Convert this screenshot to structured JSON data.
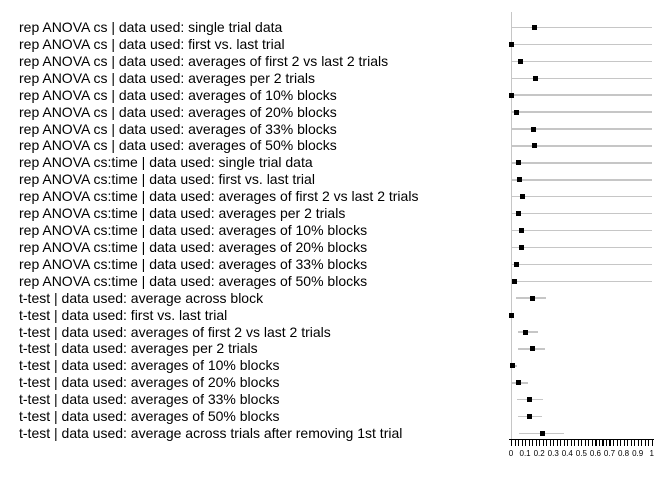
{
  "chart_data": {
    "type": "scatter",
    "subtype": "forest_plot_with_error_bars",
    "title": "",
    "xlabel": "",
    "ylabel": "",
    "xlim": [
      0,
      1
    ],
    "x_tick_values": [
      0,
      0.1,
      0.2,
      0.3,
      0.4,
      0.5,
      0.6,
      0.7,
      0.8,
      0.9,
      1
    ],
    "x_tick_labels": [
      "0",
      "0.1",
      "0.2",
      "0.3",
      "0.4",
      "0.5",
      "0.6",
      "0.7",
      "0.8",
      "0.9",
      "1"
    ],
    "minor_tick_step": 0.025,
    "grid": "off",
    "legend_position": "none",
    "marker_shape": "square",
    "colors": {
      "marker": "#000000",
      "error_bar": "#c6c6c6",
      "y_axis_line": "#c6c6c6",
      "axis": "#000000",
      "text": "#000000",
      "background": "#ffffff"
    },
    "rows": [
      {
        "label": "rep ANOVA cs | data used: single trial data",
        "value": 0.17,
        "ci_low": 0.0,
        "ci_high": 1.0
      },
      {
        "label": "rep ANOVA cs | data used: first vs. last trial",
        "value": 0.003,
        "ci_low": 0.0,
        "ci_high": 1.0
      },
      {
        "label": "rep ANOVA cs | data used: averages of first 2 vs last 2 trials",
        "value": 0.069,
        "ci_low": 0.0,
        "ci_high": 1.0
      },
      {
        "label": "rep ANOVA cs | data used: averages per 2 trials",
        "value": 0.172,
        "ci_low": 0.0,
        "ci_high": 1.0
      },
      {
        "label": "rep ANOVA cs | data used: averages of 10% blocks",
        "value": 0.007,
        "ci_low": 0.0,
        "ci_high": 1.0
      },
      {
        "label": "rep ANOVA cs | data used: averages of 20% blocks",
        "value": 0.04,
        "ci_low": 0.0,
        "ci_high": 1.0
      },
      {
        "label": "rep ANOVA cs | data used: averages of 33% blocks",
        "value": 0.16,
        "ci_low": 0.0,
        "ci_high": 1.0
      },
      {
        "label": "rep ANOVA cs | data used: averages of 50% blocks",
        "value": 0.17,
        "ci_low": 0.0,
        "ci_high": 1.0
      },
      {
        "label": "rep ANOVA cs:time | data used: single trial data",
        "value": 0.055,
        "ci_low": 0.0,
        "ci_high": 1.0
      },
      {
        "label": "rep ANOVA cs:time | data used: first vs. last trial",
        "value": 0.057,
        "ci_low": 0.0,
        "ci_high": 1.0
      },
      {
        "label": "rep ANOVA cs:time | data used: averages of first 2 vs last 2 trials",
        "value": 0.083,
        "ci_low": 0.0,
        "ci_high": 1.0
      },
      {
        "label": "rep ANOVA cs:time | data used: averages per 2 trials",
        "value": 0.052,
        "ci_low": 0.0,
        "ci_high": 1.0
      },
      {
        "label": "rep ANOVA cs:time | data used: averages of 10% blocks",
        "value": 0.073,
        "ci_low": 0.0,
        "ci_high": 1.0
      },
      {
        "label": "rep ANOVA cs:time | data used: averages of 20% blocks",
        "value": 0.078,
        "ci_low": 0.0,
        "ci_high": 1.0
      },
      {
        "label": "rep ANOVA cs:time | data used: averages of 33% blocks",
        "value": 0.04,
        "ci_low": 0.0,
        "ci_high": 1.0
      },
      {
        "label": "rep ANOVA cs:time | data used: averages of 50% blocks",
        "value": 0.023,
        "ci_low": 0.0,
        "ci_high": 1.0
      },
      {
        "label": "t-test | data used: average across block",
        "value": 0.15,
        "ci_low": 0.035,
        "ci_high": 0.25
      },
      {
        "label": "t-test | data used: first vs. last trial",
        "value": 0.003,
        "ci_low": 0.0,
        "ci_high": 0.02
      },
      {
        "label": "t-test | data used: averages of first 2 vs last 2 trials",
        "value": 0.102,
        "ci_low": 0.05,
        "ci_high": 0.19
      },
      {
        "label": "t-test | data used: averages per 2 trials",
        "value": 0.15,
        "ci_low": 0.052,
        "ci_high": 0.24
      },
      {
        "label": "t-test | data used: averages of 10% blocks",
        "value": 0.009,
        "ci_low": 0.0,
        "ci_high": 0.04
      },
      {
        "label": "t-test | data used: averages of 20% blocks",
        "value": 0.052,
        "ci_low": 0.0,
        "ci_high": 0.123
      },
      {
        "label": "t-test | data used: averages of 33% blocks",
        "value": 0.135,
        "ci_low": 0.04,
        "ci_high": 0.229
      },
      {
        "label": "t-test | data used: averages of 50% blocks",
        "value": 0.135,
        "ci_low": 0.047,
        "ci_high": 0.222
      },
      {
        "label": "t-test | data used: average across trials after removing 1st trial",
        "value": 0.225,
        "ci_low": 0.06,
        "ci_high": 0.375
      }
    ]
  }
}
